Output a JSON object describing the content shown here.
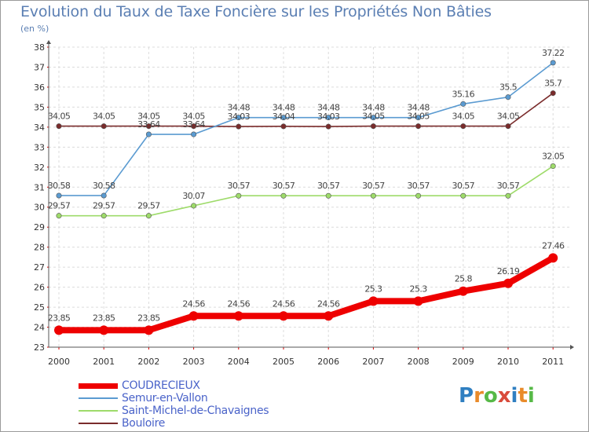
{
  "title": "Evolution du Taux de Taxe Foncière sur les Propriétés Non Bâties",
  "unit_label": "(en %)",
  "brand": {
    "letters": [
      "P",
      "r",
      "o",
      "x",
      "i",
      "t",
      "i"
    ],
    "colors": [
      "#2f7fc1",
      "#e98b2a",
      "#57b947",
      "#d94b3b",
      "#2f7fc1",
      "#e98b2a",
      "#57b947"
    ]
  },
  "chart_data": {
    "type": "line",
    "title": "Evolution du Taux de Taxe Foncière sur les Propriétés Non Bâties",
    "ylabel": "(en %)",
    "xlabel": "",
    "x": [
      "2000",
      "2001",
      "2002",
      "2003",
      "2004",
      "2005",
      "2006",
      "2007",
      "2008",
      "2009",
      "2010",
      "2011"
    ],
    "ylim": [
      23,
      38
    ],
    "yticks": [
      "23",
      "24",
      "25",
      "26",
      "27",
      "28",
      "29",
      "30",
      "31",
      "32",
      "33",
      "34",
      "35",
      "36",
      "37",
      "38"
    ],
    "grid": true,
    "legend_position": "bottom-left",
    "series": [
      {
        "name": "COUDRECIEUX",
        "color": "#ee0000",
        "values": [
          23.85,
          23.85,
          23.85,
          24.56,
          24.56,
          24.56,
          24.56,
          25.3,
          25.3,
          25.8,
          26.19,
          27.46
        ],
        "labels": [
          "23.85",
          "23.85",
          "23.85",
          "24.56",
          "24.56",
          "24.56",
          "24.56",
          "25.3",
          "25.3",
          "25.8",
          "26.19",
          "27.46"
        ]
      },
      {
        "name": "Semur-en-Vallon",
        "color": "#5b9bd1",
        "values": [
          30.58,
          30.58,
          33.64,
          33.64,
          34.48,
          34.48,
          34.48,
          34.48,
          34.48,
          35.16,
          35.5,
          37.22
        ],
        "labels": [
          "30.58",
          "30.58",
          "33.64",
          "33.64",
          "34.48",
          "34.48",
          "34.48",
          "34.48",
          "34.48",
          "35.16",
          "35.5",
          "37.22"
        ]
      },
      {
        "name": "Saint-Michel-de-Chavaignes",
        "color": "#9edb6a",
        "values": [
          29.57,
          29.57,
          29.57,
          30.07,
          30.57,
          30.57,
          30.57,
          30.57,
          30.57,
          30.57,
          30.57,
          32.05
        ],
        "labels": [
          "29.57",
          "29.57",
          "29.57",
          "30.07",
          "30.57",
          "30.57",
          "30.57",
          "30.57",
          "30.57",
          "30.57",
          "30.57",
          "32.05"
        ]
      },
      {
        "name": "Bouloire",
        "color": "#7a2b2b",
        "values": [
          34.05,
          34.05,
          34.05,
          34.05,
          34.03,
          34.04,
          34.03,
          34.05,
          34.05,
          34.05,
          34.05,
          35.7
        ],
        "labels": [
          "34.05",
          "34.05",
          "34.05",
          "34.05",
          "34.03",
          "34.04",
          "34.03",
          "34.05",
          "34.05",
          "34.05",
          "34.05",
          "35.7"
        ]
      }
    ]
  }
}
